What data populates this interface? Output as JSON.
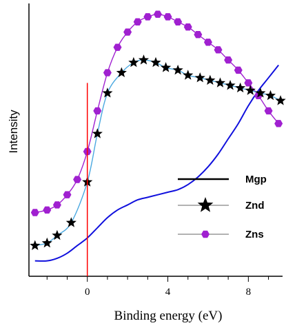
{
  "chart_data": {
    "type": "line",
    "xlabel": "Binding energy (eV)",
    "ylabel": "Intensity",
    "xlim": [
      -2.9,
      9.7
    ],
    "ylim": [
      0,
      1
    ],
    "xticks": [
      {
        "value": 0,
        "label": "0"
      },
      {
        "value": 4,
        "label": "4"
      },
      {
        "value": 8,
        "label": "8"
      }
    ],
    "marker_line": {
      "x": 0,
      "y_top": 0.72,
      "color": "#ff0000"
    },
    "series": [
      {
        "name": "Mgp",
        "color": "#1010dd",
        "marker": "none",
        "x": [
          -2.6,
          -2.0,
          -1.5,
          -1.0,
          -0.5,
          0.0,
          0.5,
          1.0,
          1.5,
          2.0,
          2.5,
          3.0,
          3.5,
          4.0,
          4.5,
          5.0,
          5.5,
          6.0,
          6.5,
          7.0,
          7.5,
          8.0,
          8.5,
          9.0,
          9.5
        ],
        "y": [
          0.02,
          0.02,
          0.03,
          0.05,
          0.08,
          0.11,
          0.15,
          0.19,
          0.22,
          0.24,
          0.26,
          0.27,
          0.28,
          0.29,
          0.3,
          0.32,
          0.35,
          0.39,
          0.44,
          0.5,
          0.56,
          0.63,
          0.69,
          0.74,
          0.79
        ]
      },
      {
        "name": "Znd",
        "color": "#000000",
        "line_color": "#4aa8e0",
        "marker": "star",
        "x": [
          -2.6,
          -2.0,
          -1.5,
          -0.8,
          0.0,
          0.5,
          1.0,
          1.7,
          2.3,
          2.8,
          3.4,
          3.9,
          4.5,
          5.0,
          5.6,
          6.1,
          6.6,
          7.1,
          7.6,
          8.1,
          8.6,
          9.1,
          9.6
        ],
        "y": [
          0.08,
          0.09,
          0.12,
          0.17,
          0.33,
          0.52,
          0.68,
          0.76,
          0.8,
          0.81,
          0.8,
          0.78,
          0.77,
          0.75,
          0.74,
          0.73,
          0.72,
          0.71,
          0.7,
          0.69,
          0.68,
          0.67,
          0.65
        ]
      },
      {
        "name": "Zns",
        "color": "#a020d0",
        "line_color": "#a020d0",
        "marker": "circle",
        "x": [
          -2.6,
          -2.0,
          -1.5,
          -1.0,
          -0.5,
          0.0,
          0.5,
          1.0,
          1.5,
          2.0,
          2.5,
          3.0,
          3.5,
          4.0,
          4.5,
          5.0,
          5.5,
          6.0,
          6.5,
          7.0,
          7.5,
          8.0,
          8.5,
          9.0,
          9.5
        ],
        "y": [
          0.21,
          0.22,
          0.24,
          0.28,
          0.34,
          0.45,
          0.61,
          0.76,
          0.86,
          0.92,
          0.96,
          0.98,
          0.99,
          0.98,
          0.96,
          0.94,
          0.91,
          0.88,
          0.85,
          0.81,
          0.77,
          0.72,
          0.67,
          0.61,
          0.56
        ]
      }
    ],
    "legend": {
      "position": "center-right",
      "entries": [
        {
          "label": "Mgp"
        },
        {
          "label": "Znd"
        },
        {
          "label": "Zns"
        }
      ]
    }
  }
}
